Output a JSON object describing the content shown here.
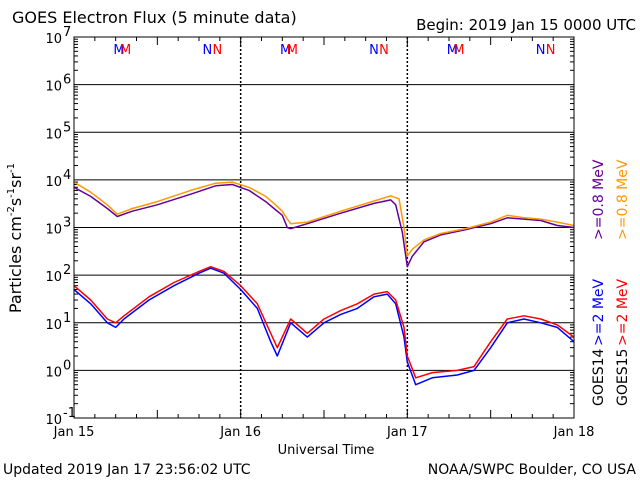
{
  "header": {
    "title": "GOES Electron Flux (5 minute data)",
    "begin": "Begin: 2019 Jan 15 0000 UTC"
  },
  "footer": {
    "updated": "Updated 2019 Jan 17 23:56:02 UTC",
    "credit": "NOAA/SWPC Boulder, CO USA"
  },
  "chart_data": {
    "type": "line",
    "title": "GOES Electron Flux (5 minute data)",
    "xlabel": "Universal Time",
    "ylabel_parts": [
      "Particles cm",
      "-2",
      "s",
      "-1",
      "sr",
      "-1"
    ],
    "yscale": "log",
    "ylim": [
      0.1,
      10000000
    ],
    "y_ticks": [
      {
        "value": 0.1,
        "base": "10",
        "exp": "-1"
      },
      {
        "value": 1,
        "base": "10",
        "exp": "0"
      },
      {
        "value": 10,
        "base": "10",
        "exp": "1"
      },
      {
        "value": 100,
        "base": "10",
        "exp": "2"
      },
      {
        "value": 1000,
        "base": "10",
        "exp": "3"
      },
      {
        "value": 10000,
        "base": "10",
        "exp": "4"
      },
      {
        "value": 100000,
        "base": "10",
        "exp": "5"
      },
      {
        "value": 1000000,
        "base": "10",
        "exp": "6"
      },
      {
        "value": 10000000,
        "base": "10",
        "exp": "7"
      }
    ],
    "x_unit": "day offset from 2019 Jan 15 0000 UTC",
    "xlim": [
      0,
      3
    ],
    "x_ticks": [
      {
        "value": 0,
        "label": "Jan 15"
      },
      {
        "value": 1,
        "label": "Jan 16"
      },
      {
        "value": 2,
        "label": "Jan 17"
      },
      {
        "value": 3,
        "label": "Jan 18"
      }
    ],
    "threshold": {
      "value": 1000
    },
    "grid": true,
    "markers": [
      {
        "x": 0.27,
        "label": "M",
        "color": "#0000ff"
      },
      {
        "x": 0.31,
        "label": "M",
        "color": "#ff0000"
      },
      {
        "x": 0.8,
        "label": "N",
        "color": "#0000ff"
      },
      {
        "x": 0.86,
        "label": "N",
        "color": "#ff0000"
      },
      {
        "x": 1.27,
        "label": "M",
        "color": "#0000ff"
      },
      {
        "x": 1.31,
        "label": "M",
        "color": "#ff0000"
      },
      {
        "x": 1.8,
        "label": "N",
        "color": "#0000ff"
      },
      {
        "x": 1.86,
        "label": "N",
        "color": "#ff0000"
      },
      {
        "x": 2.27,
        "label": "M",
        "color": "#0000ff"
      },
      {
        "x": 2.31,
        "label": "M",
        "color": "#ff0000"
      },
      {
        "x": 2.8,
        "label": "N",
        "color": "#0000ff"
      },
      {
        "x": 2.86,
        "label": "N",
        "color": "#ff0000"
      }
    ],
    "series": [
      {
        "name": ">=0.8 MeV",
        "satellite": "GOES14",
        "color": "#660099",
        "points": [
          [
            0,
            7000
          ],
          [
            0.1,
            4500
          ],
          [
            0.2,
            2500
          ],
          [
            0.26,
            1700
          ],
          [
            0.35,
            2200
          ],
          [
            0.5,
            3000
          ],
          [
            0.7,
            5000
          ],
          [
            0.85,
            7500
          ],
          [
            0.95,
            8000
          ],
          [
            1.05,
            6000
          ],
          [
            1.15,
            3500
          ],
          [
            1.2,
            2500
          ],
          [
            1.25,
            1800
          ],
          [
            1.28,
            1000
          ],
          [
            1.3,
            950
          ],
          [
            1.4,
            1200
          ],
          [
            1.6,
            2000
          ],
          [
            1.8,
            3200
          ],
          [
            1.9,
            3800
          ],
          [
            1.93,
            3000
          ],
          [
            1.97,
            800
          ],
          [
            2.0,
            150
          ],
          [
            2.03,
            250
          ],
          [
            2.1,
            500
          ],
          [
            2.2,
            700
          ],
          [
            2.35,
            900
          ],
          [
            2.5,
            1200
          ],
          [
            2.6,
            1600
          ],
          [
            2.7,
            1500
          ],
          [
            2.8,
            1400
          ],
          [
            2.9,
            1100
          ],
          [
            3.0,
            1000
          ]
        ]
      },
      {
        "name": ">=0.8 MeV",
        "satellite": "GOES15",
        "color": "#ff9900",
        "points": [
          [
            0,
            9000
          ],
          [
            0.1,
            5500
          ],
          [
            0.2,
            3000
          ],
          [
            0.26,
            1900
          ],
          [
            0.35,
            2500
          ],
          [
            0.5,
            3500
          ],
          [
            0.7,
            6000
          ],
          [
            0.85,
            8500
          ],
          [
            0.95,
            9000
          ],
          [
            1.05,
            7000
          ],
          [
            1.15,
            4500
          ],
          [
            1.2,
            3200
          ],
          [
            1.25,
            2200
          ],
          [
            1.28,
            1500
          ],
          [
            1.3,
            1200
          ],
          [
            1.4,
            1300
          ],
          [
            1.6,
            2200
          ],
          [
            1.8,
            3600
          ],
          [
            1.9,
            4600
          ],
          [
            1.95,
            4000
          ],
          [
            1.98,
            1000
          ],
          [
            2.0,
            250
          ],
          [
            2.03,
            350
          ],
          [
            2.1,
            550
          ],
          [
            2.2,
            750
          ],
          [
            2.35,
            950
          ],
          [
            2.5,
            1300
          ],
          [
            2.6,
            1800
          ],
          [
            2.7,
            1600
          ],
          [
            2.8,
            1500
          ],
          [
            2.9,
            1300
          ],
          [
            3.0,
            1100
          ]
        ]
      },
      {
        "name": ">=2 MeV",
        "satellite": "GOES14",
        "color": "#0000ff",
        "points": [
          [
            0,
            50
          ],
          [
            0.1,
            25
          ],
          [
            0.2,
            10
          ],
          [
            0.25,
            8
          ],
          [
            0.3,
            12
          ],
          [
            0.45,
            30
          ],
          [
            0.6,
            60
          ],
          [
            0.75,
            110
          ],
          [
            0.82,
            140
          ],
          [
            0.9,
            110
          ],
          [
            1.0,
            50
          ],
          [
            1.1,
            20
          ],
          [
            1.18,
            4
          ],
          [
            1.22,
            2
          ],
          [
            1.3,
            10
          ],
          [
            1.4,
            5
          ],
          [
            1.5,
            10
          ],
          [
            1.6,
            15
          ],
          [
            1.7,
            20
          ],
          [
            1.8,
            35
          ],
          [
            1.88,
            40
          ],
          [
            1.93,
            25
          ],
          [
            1.98,
            5
          ],
          [
            2.0,
            1.5
          ],
          [
            2.05,
            0.5
          ],
          [
            2.15,
            0.7
          ],
          [
            2.3,
            0.8
          ],
          [
            2.4,
            1.0
          ],
          [
            2.5,
            3
          ],
          [
            2.6,
            10
          ],
          [
            2.7,
            12
          ],
          [
            2.8,
            10
          ],
          [
            2.9,
            8
          ],
          [
            3.0,
            4
          ]
        ]
      },
      {
        "name": ">=2 MeV",
        "satellite": "GOES15",
        "color": "#ff0000",
        "points": [
          [
            0,
            60
          ],
          [
            0.1,
            30
          ],
          [
            0.2,
            12
          ],
          [
            0.25,
            10
          ],
          [
            0.3,
            14
          ],
          [
            0.45,
            35
          ],
          [
            0.6,
            70
          ],
          [
            0.75,
            120
          ],
          [
            0.82,
            150
          ],
          [
            0.9,
            120
          ],
          [
            1.0,
            60
          ],
          [
            1.1,
            25
          ],
          [
            1.18,
            6
          ],
          [
            1.22,
            3
          ],
          [
            1.3,
            12
          ],
          [
            1.4,
            6
          ],
          [
            1.5,
            12
          ],
          [
            1.6,
            18
          ],
          [
            1.7,
            25
          ],
          [
            1.8,
            40
          ],
          [
            1.88,
            45
          ],
          [
            1.93,
            30
          ],
          [
            1.98,
            8
          ],
          [
            2.0,
            2
          ],
          [
            2.05,
            0.7
          ],
          [
            2.15,
            0.9
          ],
          [
            2.3,
            1.0
          ],
          [
            2.4,
            1.2
          ],
          [
            2.5,
            4
          ],
          [
            2.6,
            12
          ],
          [
            2.7,
            14
          ],
          [
            2.8,
            12
          ],
          [
            2.9,
            9
          ],
          [
            3.0,
            5
          ]
        ]
      }
    ],
    "legend": {
      "placement": "right",
      "columns": [
        {
          "satellite": "GOES14",
          "satellite_color": "#000000",
          "entries": [
            {
              "text": ">=2 MeV",
              "color": "#0000ff"
            },
            {
              "text": ">=0.8 MeV",
              "color": "#660099"
            }
          ]
        },
        {
          "satellite": "GOES15",
          "satellite_color": "#000000",
          "entries": [
            {
              "text": ">=2 MeV",
              "color": "#ff0000"
            },
            {
              "text": ">=0.8 MeV",
              "color": "#ff9900"
            }
          ]
        }
      ]
    }
  }
}
